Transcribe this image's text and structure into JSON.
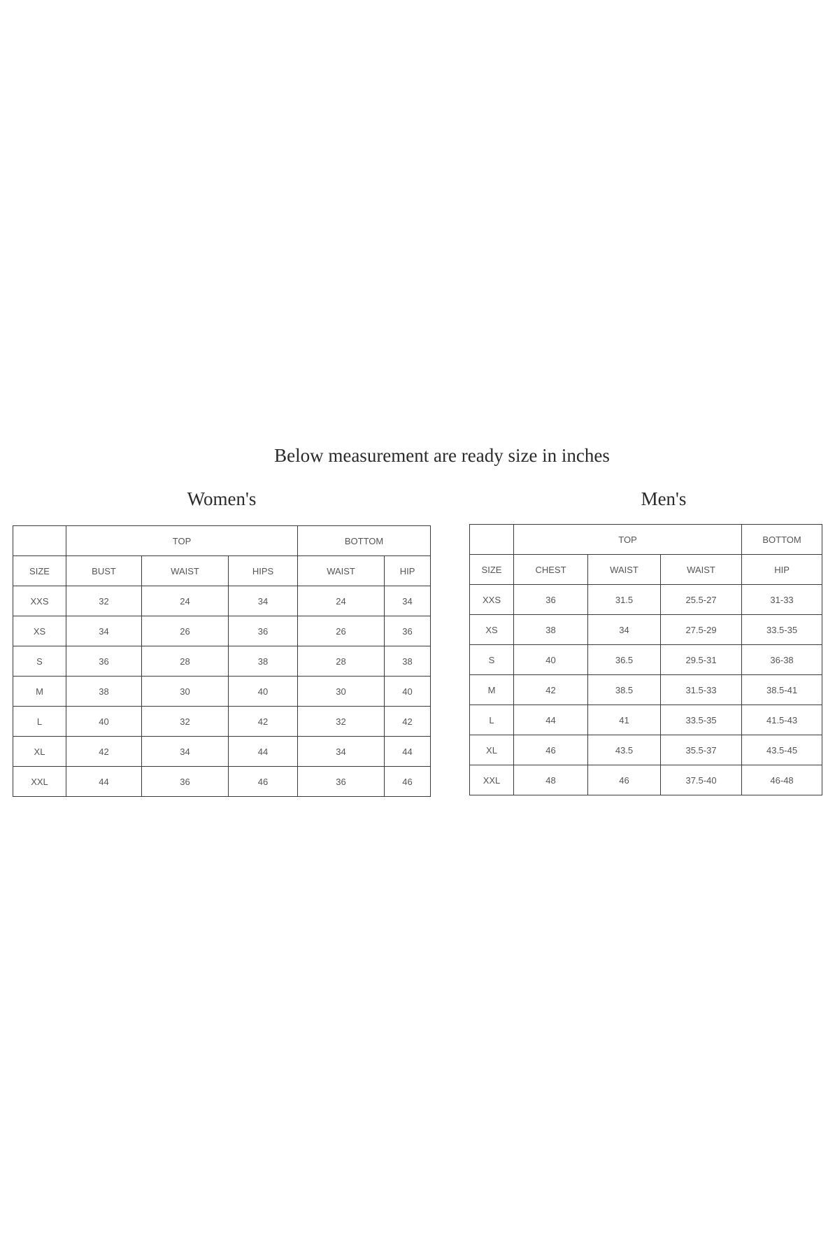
{
  "title": "Below measurement are ready size in inches",
  "women": {
    "heading": "Women's",
    "groups": [
      {
        "label": "",
        "span": 1
      },
      {
        "label": "TOP",
        "span": 3
      },
      {
        "label": "BOTTOM",
        "span": 2
      }
    ],
    "columns": [
      "SIZE",
      "BUST",
      "WAIST",
      "HIPS",
      "WAIST",
      "HIP"
    ],
    "rows": [
      [
        "XXS",
        "32",
        "24",
        "34",
        "24",
        "34"
      ],
      [
        "XS",
        "34",
        "26",
        "36",
        "26",
        "36"
      ],
      [
        "S",
        "36",
        "28",
        "38",
        "28",
        "38"
      ],
      [
        "M",
        "38",
        "30",
        "40",
        "30",
        "40"
      ],
      [
        "L",
        "40",
        "32",
        "42",
        "32",
        "42"
      ],
      [
        "XL",
        "42",
        "34",
        "44",
        "34",
        "44"
      ],
      [
        "XXL",
        "44",
        "36",
        "46",
        "36",
        "46"
      ]
    ]
  },
  "men": {
    "heading": "Men's",
    "groups": [
      {
        "label": "",
        "span": 1
      },
      {
        "label": "TOP",
        "span": 3
      },
      {
        "label": "BOTTOM",
        "span": 1
      }
    ],
    "columns": [
      "SIZE",
      "CHEST",
      "WAIST",
      "WAIST",
      "HIP"
    ],
    "rows": [
      [
        "XXS",
        "36",
        "31.5",
        "25.5-27",
        "31-33"
      ],
      [
        "XS",
        "38",
        "34",
        "27.5-29",
        "33.5-35"
      ],
      [
        "S",
        "40",
        "36.5",
        "29.5-31",
        "36-38"
      ],
      [
        "M",
        "42",
        "38.5",
        "31.5-33",
        "38.5-41"
      ],
      [
        "L",
        "44",
        "41",
        "33.5-35",
        "41.5-43"
      ],
      [
        "XL",
        "46",
        "43.5",
        "35.5-37",
        "43.5-45"
      ],
      [
        "XXL",
        "48",
        "46",
        "37.5-40",
        "46-48"
      ]
    ]
  }
}
